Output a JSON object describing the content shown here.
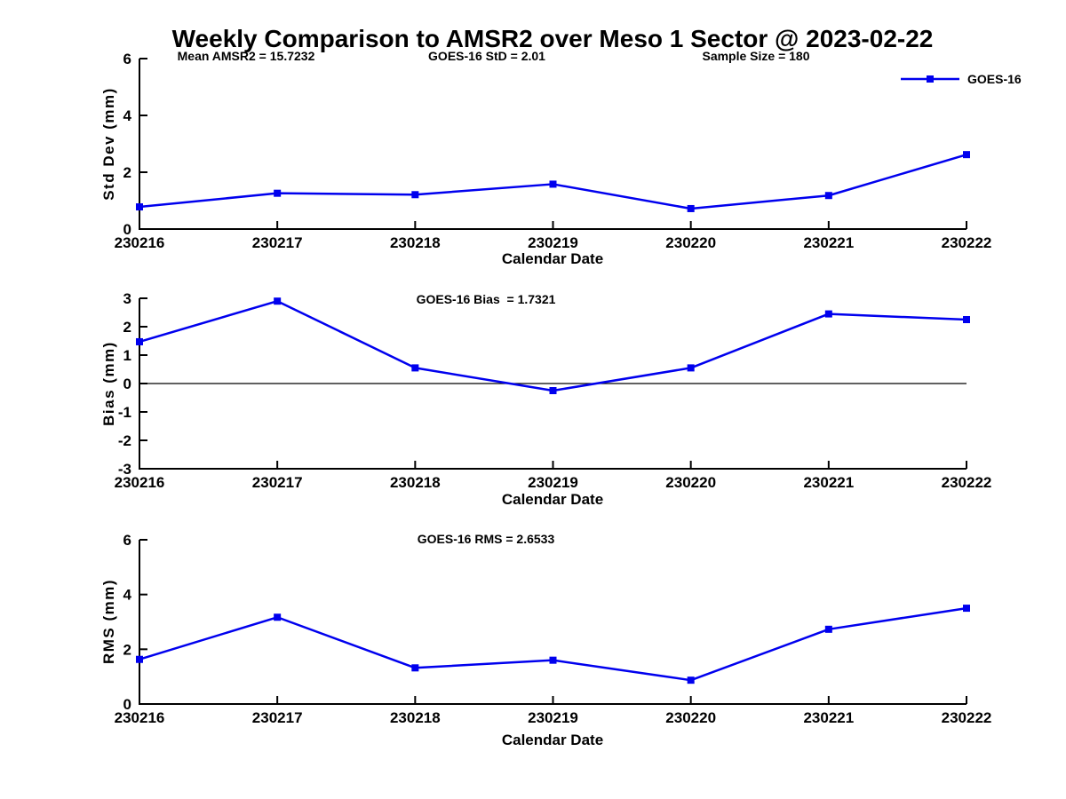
{
  "figure": {
    "title": "Weekly Comparison to AMSR2 over Meso 1 Sector @ 2023-02-22",
    "background_color": "#FFFFFF",
    "line_color": "#0000EE",
    "axis_color": "#000000"
  },
  "legend": {
    "label": "GOES-16"
  },
  "chart_data": [
    {
      "type": "line",
      "name": "std-dev-subplot",
      "annotations": [
        "Mean AMSR2 = 15.7232",
        "GOES-16 StD = 2.01",
        "Sample Size = 180"
      ],
      "categories": [
        "230216",
        "230217",
        "230218",
        "230219",
        "230220",
        "230221",
        "230222"
      ],
      "series": [
        {
          "name": "GOES-16",
          "values": [
            0.78,
            1.26,
            1.21,
            1.58,
            0.72,
            1.18,
            2.62
          ]
        }
      ],
      "xlabel": "Calendar Date",
      "ylabel": "Std Dev (mm)",
      "ylim": [
        0,
        6
      ],
      "yticks": [
        0,
        2,
        4,
        6
      ],
      "zero_line": false,
      "grid": false,
      "legend_position": "top-right"
    },
    {
      "type": "line",
      "name": "bias-subplot",
      "annotations": [
        "GOES-16 Bias  = 1.7321"
      ],
      "categories": [
        "230216",
        "230217",
        "230218",
        "230219",
        "230220",
        "230221",
        "230222"
      ],
      "series": [
        {
          "name": "GOES-16",
          "values": [
            1.47,
            2.9,
            0.55,
            -0.25,
            0.55,
            2.45,
            2.25
          ]
        }
      ],
      "xlabel": "Calendar Date",
      "ylabel": "Bias (mm)",
      "ylim": [
        -3,
        3
      ],
      "yticks": [
        -3,
        -2,
        -1,
        0,
        1,
        2,
        3
      ],
      "zero_line": true,
      "grid": false
    },
    {
      "type": "line",
      "name": "rms-subplot",
      "annotations": [
        "GOES-16 RMS = 2.6533"
      ],
      "categories": [
        "230216",
        "230217",
        "230218",
        "230219",
        "230220",
        "230221",
        "230222"
      ],
      "series": [
        {
          "name": "GOES-16",
          "values": [
            1.63,
            3.17,
            1.32,
            1.6,
            0.87,
            2.73,
            3.5
          ]
        }
      ],
      "xlabel": "Calendar Date",
      "ylabel": "RMS (mm)",
      "ylim": [
        0,
        6
      ],
      "yticks": [
        0,
        2,
        4,
        6
      ],
      "zero_line": false,
      "grid": false
    }
  ]
}
